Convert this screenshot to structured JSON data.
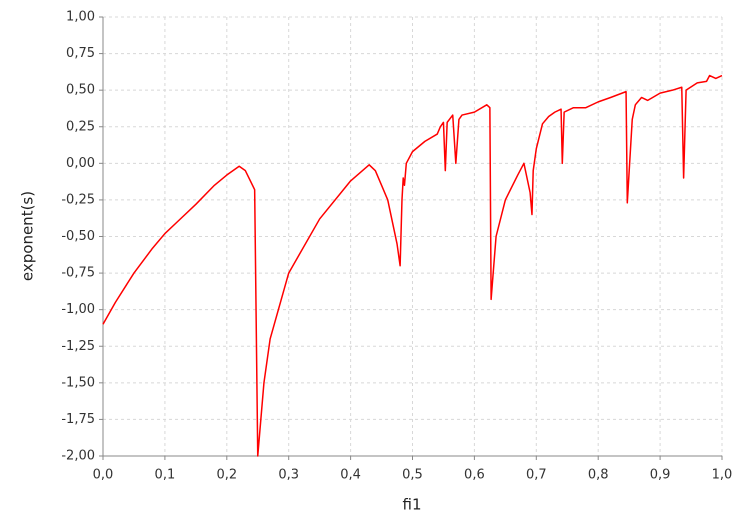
{
  "chart_data": {
    "type": "line",
    "x_label": "fi1",
    "y_label": "exponent(s)",
    "x": [
      0.0,
      0.02,
      0.05,
      0.08,
      0.1,
      0.12,
      0.15,
      0.18,
      0.2,
      0.22,
      0.23,
      0.245,
      0.25,
      0.26,
      0.27,
      0.3,
      0.35,
      0.4,
      0.43,
      0.44,
      0.46,
      0.475,
      0.48,
      0.483,
      0.485,
      0.487,
      0.49,
      0.5,
      0.52,
      0.54,
      0.545,
      0.55,
      0.553,
      0.556,
      0.565,
      0.57,
      0.575,
      0.58,
      0.6,
      0.62,
      0.625,
      0.627,
      0.635,
      0.65,
      0.67,
      0.68,
      0.69,
      0.693,
      0.695,
      0.7,
      0.71,
      0.72,
      0.73,
      0.74,
      0.742,
      0.745,
      0.76,
      0.78,
      0.8,
      0.82,
      0.845,
      0.847,
      0.855,
      0.86,
      0.87,
      0.88,
      0.9,
      0.92,
      0.935,
      0.938,
      0.942,
      0.96,
      0.975,
      0.98,
      0.99,
      1.0
    ],
    "series": [
      {
        "name": "exponent",
        "color": "#ff0000",
        "values": [
          -1.1,
          -0.95,
          -0.75,
          -0.58,
          -0.48,
          -0.4,
          -0.28,
          -0.15,
          -0.08,
          -0.02,
          -0.05,
          -0.18,
          -2.0,
          -1.5,
          -1.2,
          -0.75,
          -0.38,
          -0.12,
          -0.01,
          -0.05,
          -0.25,
          -0.55,
          -0.7,
          -0.25,
          -0.1,
          -0.15,
          0.0,
          0.08,
          0.15,
          0.2,
          0.25,
          0.28,
          -0.05,
          0.28,
          0.33,
          0.0,
          0.3,
          0.33,
          0.35,
          0.4,
          0.38,
          -0.93,
          -0.5,
          -0.25,
          -0.08,
          0.0,
          -0.2,
          -0.35,
          -0.05,
          0.1,
          0.27,
          0.32,
          0.35,
          0.37,
          0.0,
          0.35,
          0.38,
          0.38,
          0.42,
          0.45,
          0.49,
          -0.27,
          0.3,
          0.4,
          0.45,
          0.43,
          0.48,
          0.5,
          0.52,
          -0.1,
          0.5,
          0.55,
          0.56,
          0.6,
          0.58,
          0.6
        ]
      }
    ],
    "xlim": [
      0.0,
      1.0
    ],
    "xticks": [
      {
        "value": 0.0,
        "label": "0,0"
      },
      {
        "value": 0.1,
        "label": "0,1"
      },
      {
        "value": 0.2,
        "label": "0,2"
      },
      {
        "value": 0.3,
        "label": "0,3"
      },
      {
        "value": 0.4,
        "label": "0,4"
      },
      {
        "value": 0.5,
        "label": "0,5"
      },
      {
        "value": 0.6,
        "label": "0,6"
      },
      {
        "value": 0.7,
        "label": "0,7"
      },
      {
        "value": 0.8,
        "label": "0,8"
      },
      {
        "value": 0.9,
        "label": "0,9"
      },
      {
        "value": 1.0,
        "label": "1,0"
      }
    ],
    "ylim": [
      -2.0,
      1.0
    ],
    "yticks": [
      {
        "value": -2.0,
        "label": "-2,00"
      },
      {
        "value": -1.75,
        "label": "-1,75"
      },
      {
        "value": -1.5,
        "label": "-1,50"
      },
      {
        "value": -1.25,
        "label": "-1,25"
      },
      {
        "value": -1.0,
        "label": "-1,00"
      },
      {
        "value": -0.75,
        "label": "-0,75"
      },
      {
        "value": -0.5,
        "label": "-0,50"
      },
      {
        "value": -0.25,
        "label": "-0,25"
      },
      {
        "value": 0.0,
        "label": "0,00"
      },
      {
        "value": 0.25,
        "label": "0,25"
      },
      {
        "value": 0.5,
        "label": "0,50"
      },
      {
        "value": 0.75,
        "label": "0,75"
      },
      {
        "value": 1.0,
        "label": "1,00"
      }
    ],
    "grid": true
  }
}
